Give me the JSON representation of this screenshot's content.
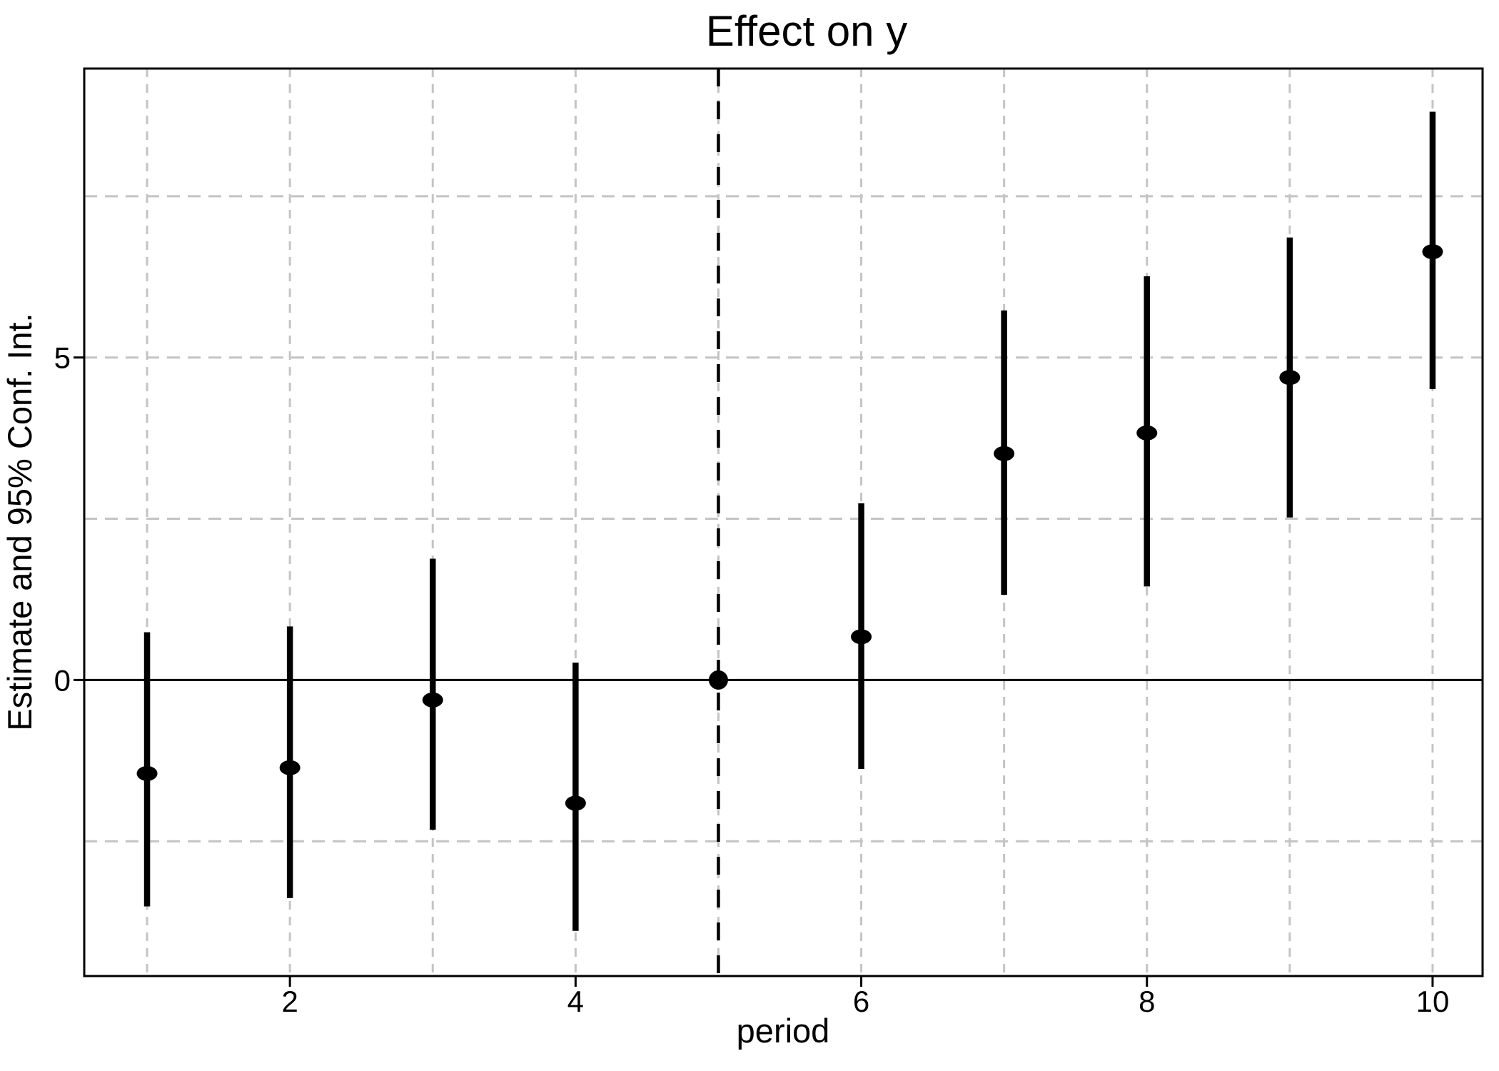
{
  "chart_data": {
    "type": "scatter",
    "title": "Effect on y",
    "xlabel": "period",
    "ylabel": "Estimate and 95% Conf. Int.",
    "x": [
      1,
      2,
      3,
      4,
      5,
      6,
      7,
      8,
      9,
      10
    ],
    "estimates": [
      -1.45,
      -1.36,
      -0.31,
      -1.91,
      0,
      0.67,
      3.51,
      3.83,
      4.69,
      6.64
    ],
    "ci_low": [
      -3.51,
      -3.38,
      -2.32,
      -3.89,
      null,
      -1.38,
      1.32,
      1.45,
      2.52,
      4.51
    ],
    "ci_high": [
      0.74,
      0.83,
      1.88,
      0.27,
      null,
      2.74,
      5.73,
      6.26,
      6.86,
      8.81
    ],
    "reference_period": 5,
    "event_line_x": 5,
    "zero_line_y": 0,
    "x_ticks": [
      2,
      4,
      6,
      8,
      10
    ],
    "y_ticks": [
      0,
      5
    ],
    "h_gridlines": [
      -2.5,
      2.5,
      5,
      7.5
    ],
    "v_gridlines": [
      1,
      2,
      3,
      4,
      5,
      6,
      7,
      8,
      9,
      10
    ],
    "xlim": [
      0.56,
      10.35
    ],
    "ylim": [
      -4.59,
      9.48
    ],
    "grid_on": true,
    "legend": "none",
    "colors": {
      "point": "#000000",
      "ci_bar": "#000000",
      "grid": "#c4c4c4",
      "event_line": "#000000",
      "zero_line": "#000000",
      "border": "#000000",
      "background": "#ffffff"
    }
  }
}
